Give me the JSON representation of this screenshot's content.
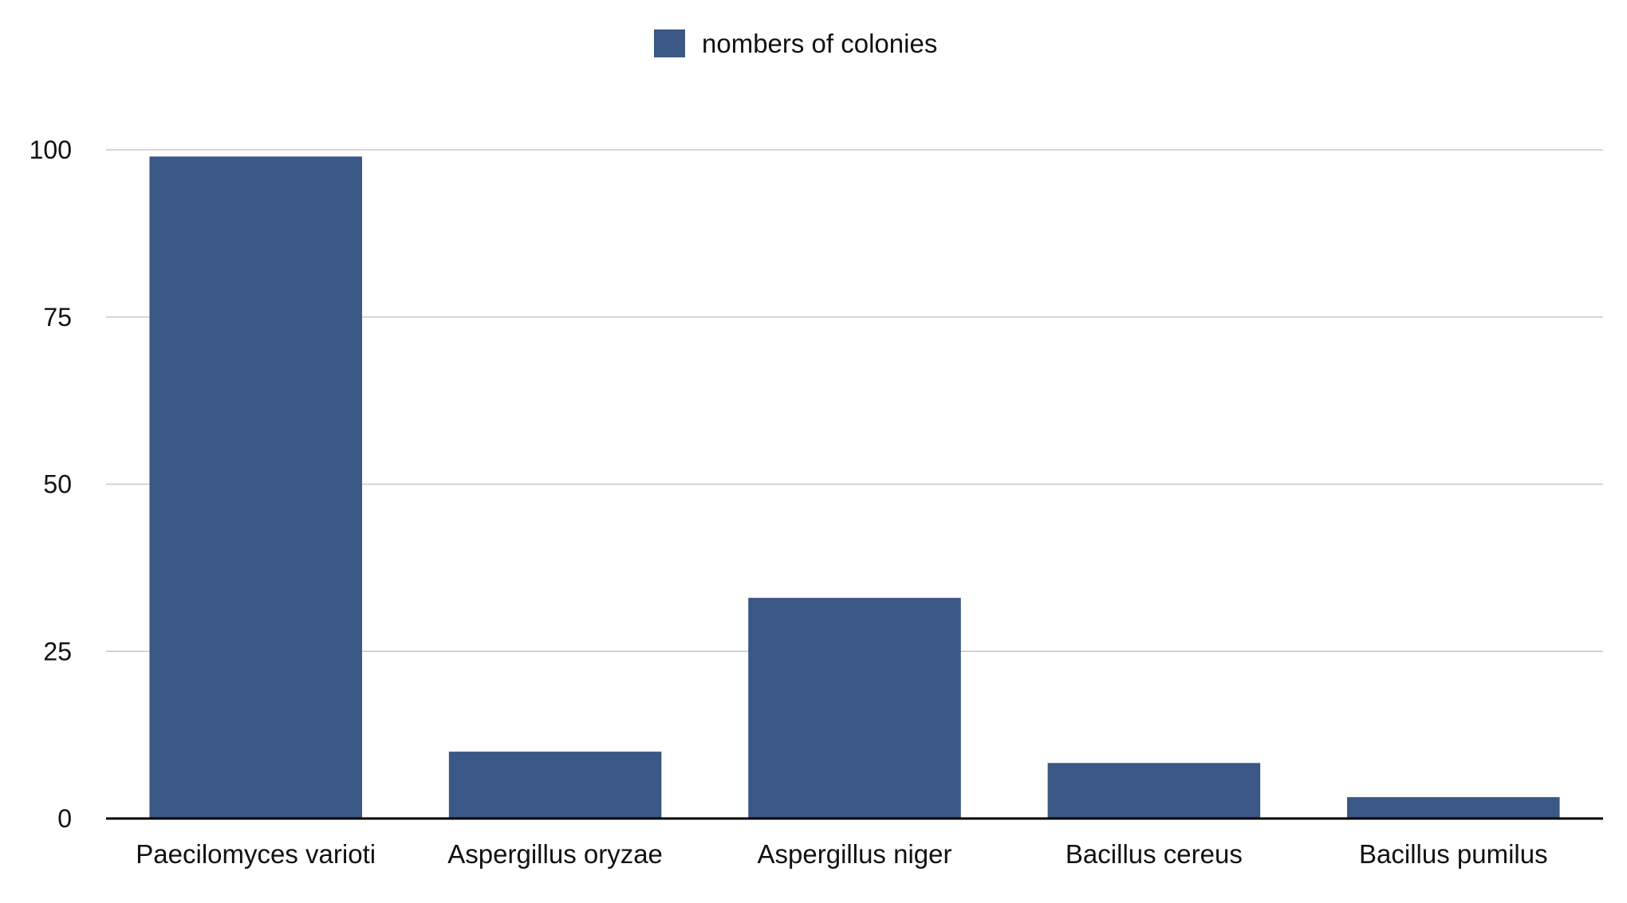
{
  "chart_data": {
    "type": "bar",
    "title": "",
    "xlabel": "",
    "ylabel": "",
    "categories": [
      "Paecilomyces varioti",
      "Aspergillus oryzae",
      "Aspergillus niger",
      "Bacillus cereus",
      "Bacillus pumilus"
    ],
    "series": [
      {
        "name": "nombers of colonies",
        "values": [
          99,
          10,
          33,
          8.3,
          3.2
        ],
        "color": "#3a5785"
      }
    ],
    "ylim": [
      0,
      100
    ],
    "yticks": [
      "0",
      "25",
      "50",
      "75",
      "100"
    ],
    "grid": true,
    "gridColor": "#c8c8c8",
    "axisColor": "#000000",
    "legend": "top-center"
  }
}
